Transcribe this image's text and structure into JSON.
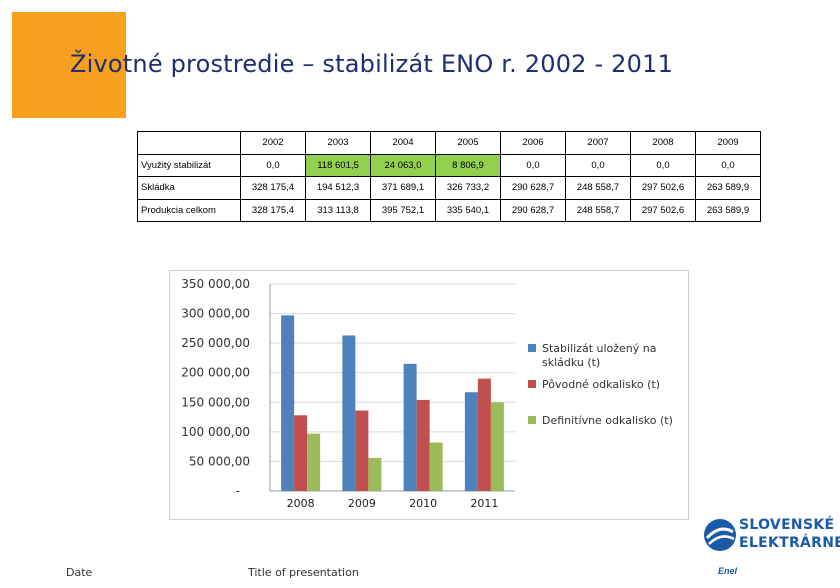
{
  "slide": {
    "title": "Životné prostredie – stabilizát ENO r. 2002 - 2011",
    "footer_date": "Date",
    "footer_title": "Title of presentation"
  },
  "table": {
    "years": [
      "2002",
      "2003",
      "2004",
      "2005",
      "2006",
      "2007",
      "2008",
      "2009"
    ],
    "rows": [
      {
        "label": "Využitý stabilizát",
        "values": [
          "0,0",
          "118 601,5",
          "24 063,0",
          "8 806,9",
          "0,0",
          "0,0",
          "0,0",
          "0,0"
        ]
      },
      {
        "label": "Skládka",
        "values": [
          "328 175,4",
          "194 512,3",
          "371 689,1",
          "326 733,2",
          "290 628,7",
          "248 558,7",
          "297 502,6",
          "263 589,9"
        ]
      },
      {
        "label": "Produkcia celkom",
        "values": [
          "328 175,4",
          "313 113,8",
          "395 752,1",
          "335 540,1",
          "290 628,7",
          "248 558,7",
          "297 502,6",
          "263 589,9"
        ]
      }
    ],
    "highlight_color": "#92d050"
  },
  "chart_data": {
    "type": "bar",
    "categories": [
      "2008",
      "2009",
      "2010",
      "2011"
    ],
    "series": [
      {
        "name": "Stabilizát uložený na skládku (t)",
        "color": "#4f81bd",
        "values": [
          297000,
          263000,
          215000,
          167000
        ]
      },
      {
        "name": "Pôvodné odkalisko (t)",
        "color": "#c0504d",
        "values": [
          128000,
          136000,
          154000,
          190000
        ]
      },
      {
        "name": "Definitívne odkalisko (t)",
        "color": "#9bbb59",
        "values": [
          97000,
          56000,
          82000,
          150000
        ]
      }
    ],
    "y_ticks": [
      "-",
      "50 000,00",
      "100 000,00",
      "150 000,00",
      "200 000,00",
      "250 000,00",
      "300 000,00",
      "350 000,00"
    ],
    "ylim": [
      0,
      350000
    ],
    "grid": true,
    "legend": "right"
  },
  "logo": {
    "line1": "SLOVENSKÉ",
    "line2": "ELEKTRÁRNE",
    "sub": "Enel"
  }
}
